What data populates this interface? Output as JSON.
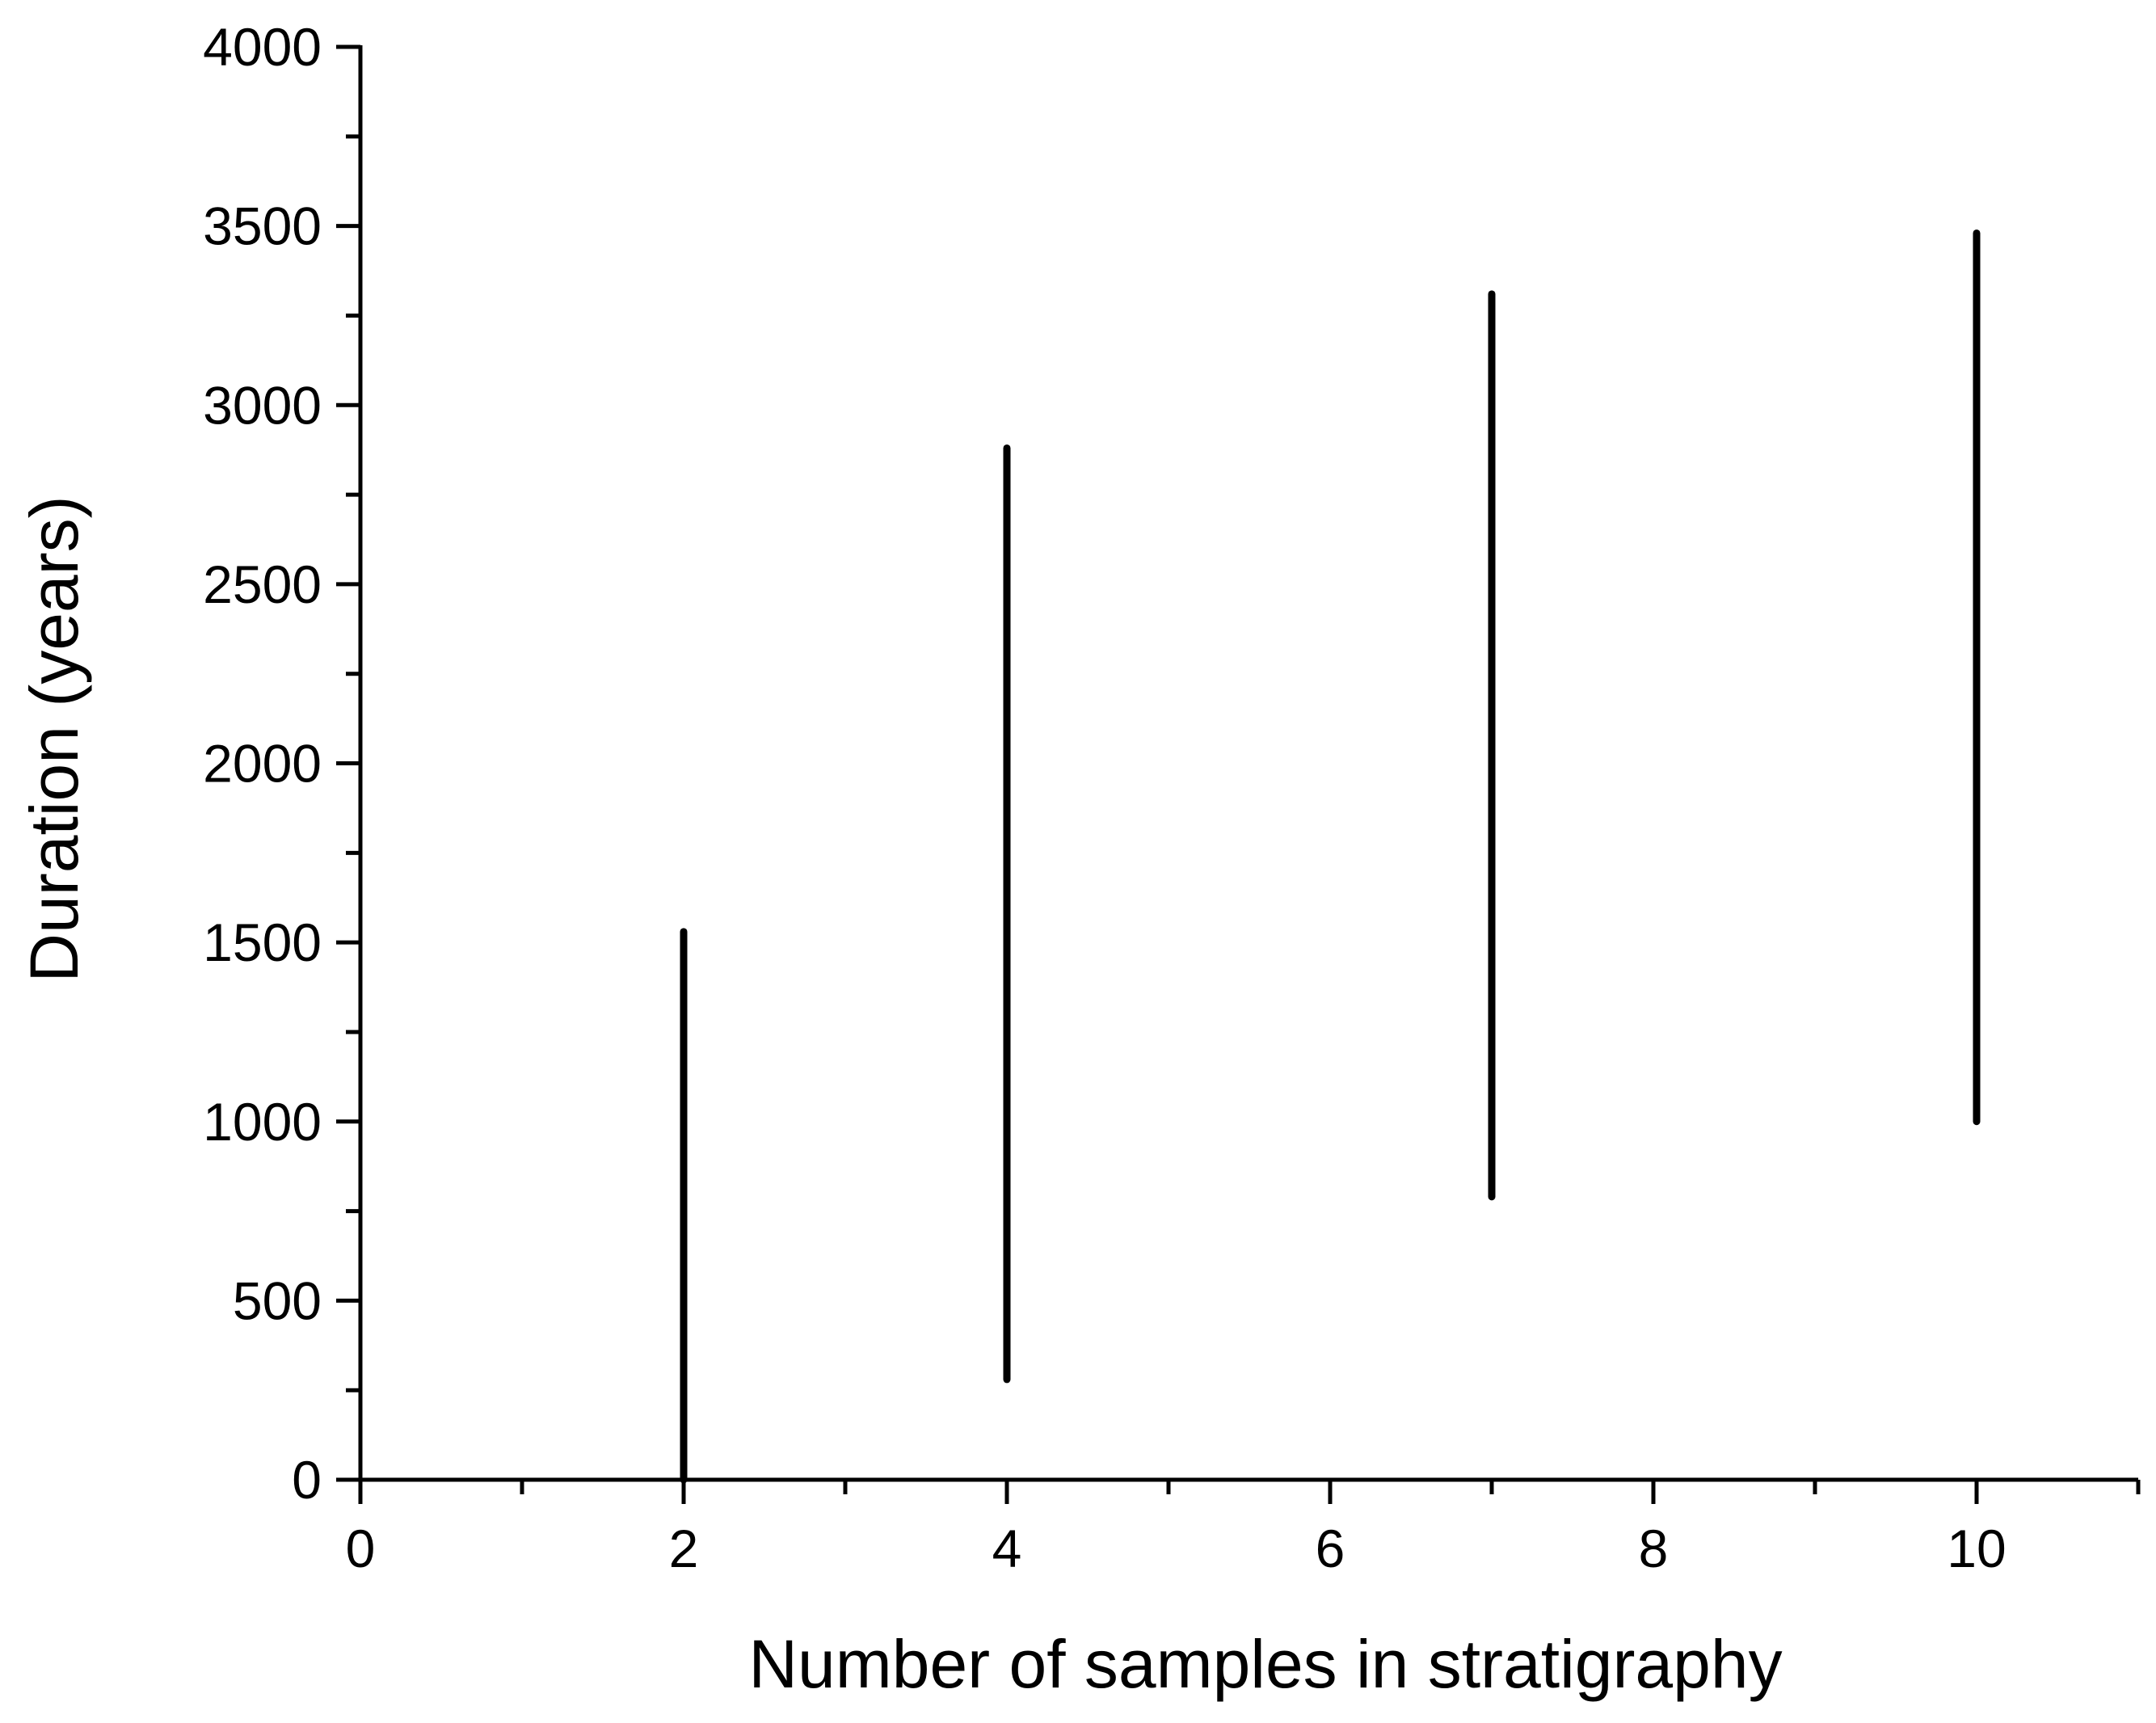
{
  "chart_data": {
    "type": "range",
    "xlabel": "Number of samples in stratigraphy",
    "ylabel": "Duration (years)",
    "xlim": [
      0,
      11
    ],
    "ylim": [
      0,
      4000
    ],
    "x_ticks": [
      0,
      2,
      4,
      6,
      8,
      10
    ],
    "x_minor_ticks": [
      1,
      3,
      5,
      7,
      9,
      11
    ],
    "y_ticks": [
      0,
      500,
      1000,
      1500,
      2000,
      2500,
      3000,
      3500,
      4000
    ],
    "y_minor_ticks": [
      250,
      750,
      1250,
      1750,
      2250,
      2750,
      3250,
      3750
    ],
    "grid": false,
    "color": "#000000",
    "ranges": [
      {
        "x": 2,
        "low": 0,
        "high": 1530
      },
      {
        "x": 4,
        "low": 280,
        "high": 2880
      },
      {
        "x": 7,
        "low": 790,
        "high": 3310
      },
      {
        "x": 10,
        "low": 1000,
        "high": 3480
      }
    ]
  }
}
